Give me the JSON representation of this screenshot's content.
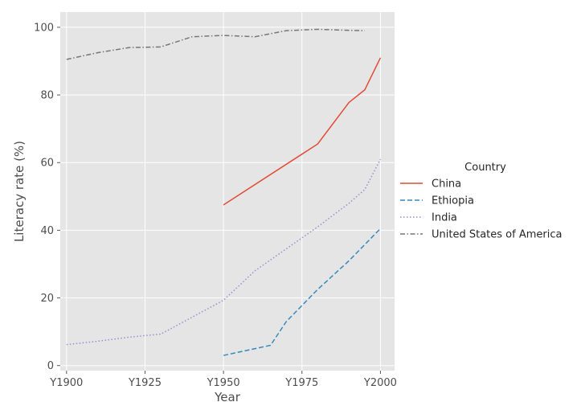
{
  "chart_data": {
    "type": "line",
    "xlabel": "Year",
    "ylabel": "Literacy rate (%)",
    "xlim": [
      1898,
      2004.5
    ],
    "ylim": [
      -1.5,
      104.5
    ],
    "x_ticks": [
      1900,
      1925,
      1950,
      1975,
      2000
    ],
    "x_tick_labels": [
      "Y1900",
      "Y1925",
      "Y1950",
      "Y1975",
      "Y2000"
    ],
    "y_ticks": [
      0,
      20,
      40,
      60,
      80,
      100
    ],
    "y_tick_labels": [
      "0",
      "20",
      "40",
      "60",
      "80",
      "100"
    ],
    "grid": true,
    "legend": {
      "title": "Country",
      "placement": "right"
    },
    "series": [
      {
        "name": "China",
        "color": "#E24A33",
        "dash": "solid",
        "points": [
          [
            1950,
            47.5
          ],
          [
            1980,
            65.5
          ],
          [
            1990,
            77.8
          ],
          [
            1995,
            81.5
          ],
          [
            2000,
            91.0
          ]
        ]
      },
      {
        "name": "Ethiopia",
        "color": "#348ABD",
        "dash": "dashed",
        "points": [
          [
            1950,
            3.0
          ],
          [
            1965,
            6.0
          ],
          [
            1970,
            13.0
          ],
          [
            1980,
            22.5
          ],
          [
            1990,
            31.0
          ],
          [
            2000,
            40.5
          ]
        ]
      },
      {
        "name": "India",
        "color": "#988ED5",
        "dash": "dotted",
        "points": [
          [
            1900,
            6.2
          ],
          [
            1910,
            7.2
          ],
          [
            1920,
            8.4
          ],
          [
            1930,
            9.3
          ],
          [
            1950,
            19.3
          ],
          [
            1960,
            28.0
          ],
          [
            1980,
            41.0
          ],
          [
            1990,
            48.0
          ],
          [
            1995,
            52.0
          ],
          [
            2000,
            61.0
          ]
        ]
      },
      {
        "name": "United States of America",
        "color": "#777777",
        "dash": "dashdot",
        "points": [
          [
            1900,
            90.5
          ],
          [
            1910,
            92.5
          ],
          [
            1920,
            94.0
          ],
          [
            1930,
            94.2
          ],
          [
            1940,
            97.2
          ],
          [
            1950,
            97.6
          ],
          [
            1960,
            97.2
          ],
          [
            1970,
            99.0
          ],
          [
            1980,
            99.4
          ],
          [
            1990,
            99.1
          ],
          [
            1995,
            99.0
          ]
        ]
      }
    ]
  }
}
